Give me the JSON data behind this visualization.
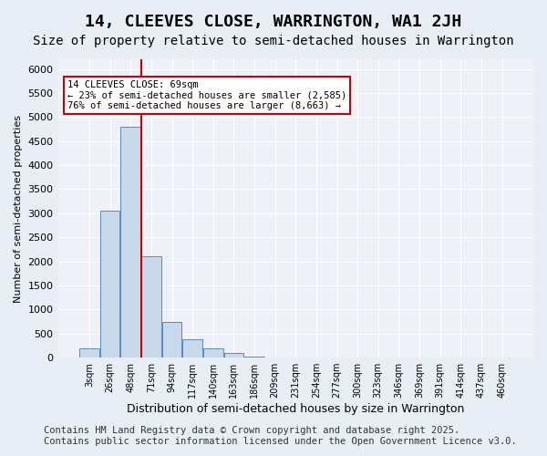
{
  "title": "14, CLEEVES CLOSE, WARRINGTON, WA1 2JH",
  "subtitle": "Size of property relative to semi-detached houses in Warrington",
  "xlabel": "Distribution of semi-detached houses by size in Warrington",
  "ylabel": "Number of semi-detached properties",
  "categories": [
    "3sqm",
    "26sqm",
    "48sqm",
    "71sqm",
    "94sqm",
    "117sqm",
    "140sqm",
    "163sqm",
    "186sqm",
    "209sqm",
    "231sqm",
    "254sqm",
    "277sqm",
    "300sqm",
    "323sqm",
    "346sqm",
    "369sqm",
    "391sqm",
    "414sqm",
    "437sqm",
    "460sqm"
  ],
  "values": [
    200,
    3050,
    4800,
    2100,
    750,
    380,
    200,
    100,
    30,
    0,
    0,
    0,
    0,
    0,
    0,
    0,
    0,
    0,
    0,
    0,
    0
  ],
  "bar_color": "#c9d9ec",
  "bar_edge_color": "#5a8abf",
  "property_line_x": 3,
  "property_value": 69,
  "annotation_text_line1": "14 CLEEVES CLOSE: 69sqm",
  "annotation_text_line2": "← 23% of semi-detached houses are smaller (2,585)",
  "annotation_text_line3": "76% of semi-detached houses are larger (8,663) →",
  "annotation_box_color": "#ffffff",
  "annotation_box_edge": "#cc0000",
  "vline_color": "#cc0000",
  "ylim": [
    0,
    6200
  ],
  "yticks": [
    0,
    500,
    1000,
    1500,
    2000,
    2500,
    3000,
    3500,
    4000,
    4500,
    5000,
    5500,
    6000
  ],
  "footer_line1": "Contains HM Land Registry data © Crown copyright and database right 2025.",
  "footer_line2": "Contains public sector information licensed under the Open Government Licence v3.0.",
  "bg_color": "#e8eef5",
  "plot_bg_color": "#eef2f8",
  "grid_color": "#ffffff",
  "title_fontsize": 13,
  "subtitle_fontsize": 10,
  "footer_fontsize": 7.5
}
